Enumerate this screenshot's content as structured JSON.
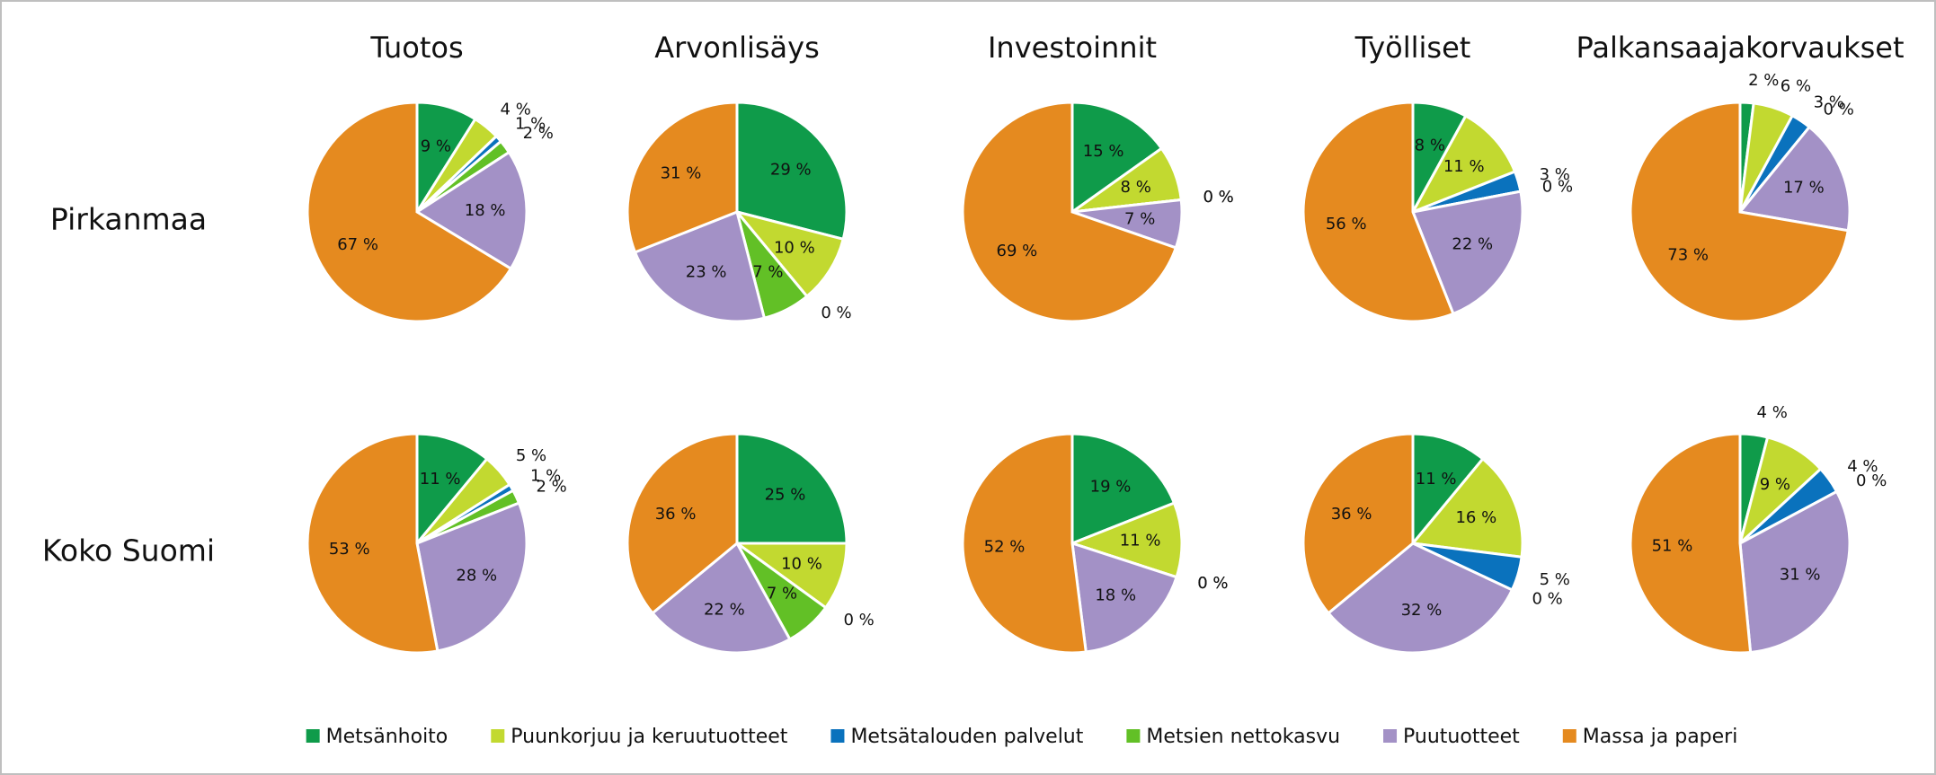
{
  "columns": [
    "Tuotos",
    "Arvonlisäys",
    "Investoinnit",
    "Työlliset",
    "Palkansaajakorvaukset"
  ],
  "rows": [
    "Pirkanmaa",
    "Koko Suomi"
  ],
  "categories": [
    "Metsänhoito",
    "Puunkorjuu ja keruutuotteet",
    "Metsätalouden palvelut",
    "Metsien nettokasvu",
    "Puutuotteet",
    "Massa ja paperi"
  ],
  "colors": [
    "#0f9b4a",
    "#c2d930",
    "#0a72bd",
    "#62c026",
    "#a391c6",
    "#e58a1f"
  ],
  "chart_data": [
    {
      "type": "pie",
      "values": [
        9,
        4,
        1,
        2,
        18,
        67
      ],
      "value_labels": [
        "9 %",
        "4 %",
        "1 %",
        "2 %",
        "18 %",
        "67 %"
      ]
    },
    {
      "type": "pie",
      "values": [
        29,
        10,
        0,
        7,
        23,
        31
      ],
      "value_labels": [
        "29 %",
        "10 %",
        "0 %",
        "7 %",
        "23 %",
        "31 %"
      ]
    },
    {
      "type": "pie",
      "values": [
        15,
        8,
        0,
        0,
        7,
        69
      ],
      "value_labels": [
        "15 %",
        "8 %",
        "0 %",
        "0 %",
        "7 %",
        "69 %"
      ]
    },
    {
      "type": "pie",
      "values": [
        8,
        11,
        3,
        0,
        22,
        56
      ],
      "value_labels": [
        "8 %",
        "11 %",
        "3 %",
        "0 %",
        "22 %",
        "56 %"
      ]
    },
    {
      "type": "pie",
      "values": [
        2,
        6,
        3,
        0,
        17,
        73
      ],
      "value_labels": [
        "2 %",
        "6 %",
        "3 %",
        "0 %",
        "17 %",
        "73 %"
      ]
    },
    {
      "type": "pie",
      "values": [
        11,
        5,
        1,
        2,
        28,
        53
      ],
      "value_labels": [
        "11 %",
        "5 %",
        "1 %",
        "2 %",
        "28 %",
        "53 %"
      ]
    },
    {
      "type": "pie",
      "values": [
        25,
        10,
        0,
        7,
        22,
        36
      ],
      "value_labels": [
        "25 %",
        "10 %",
        "0 %",
        "7 %",
        "22 %",
        "36 %"
      ]
    },
    {
      "type": "pie",
      "values": [
        19,
        11,
        0,
        0,
        18,
        52
      ],
      "value_labels": [
        "19 %",
        "11 %",
        "0 %",
        "0 %",
        "18 %",
        "52 %"
      ]
    },
    {
      "type": "pie",
      "values": [
        11,
        16,
        5,
        0,
        32,
        36
      ],
      "value_labels": [
        "11 %",
        "16 %",
        "5 %",
        "0 %",
        "32 %",
        "36 %"
      ]
    },
    {
      "type": "pie",
      "values": [
        4,
        9,
        4,
        0,
        31,
        51
      ],
      "value_labels": [
        "4 %",
        "9 %",
        "4 %",
        "0 %",
        "31 %",
        "51 %"
      ]
    }
  ]
}
